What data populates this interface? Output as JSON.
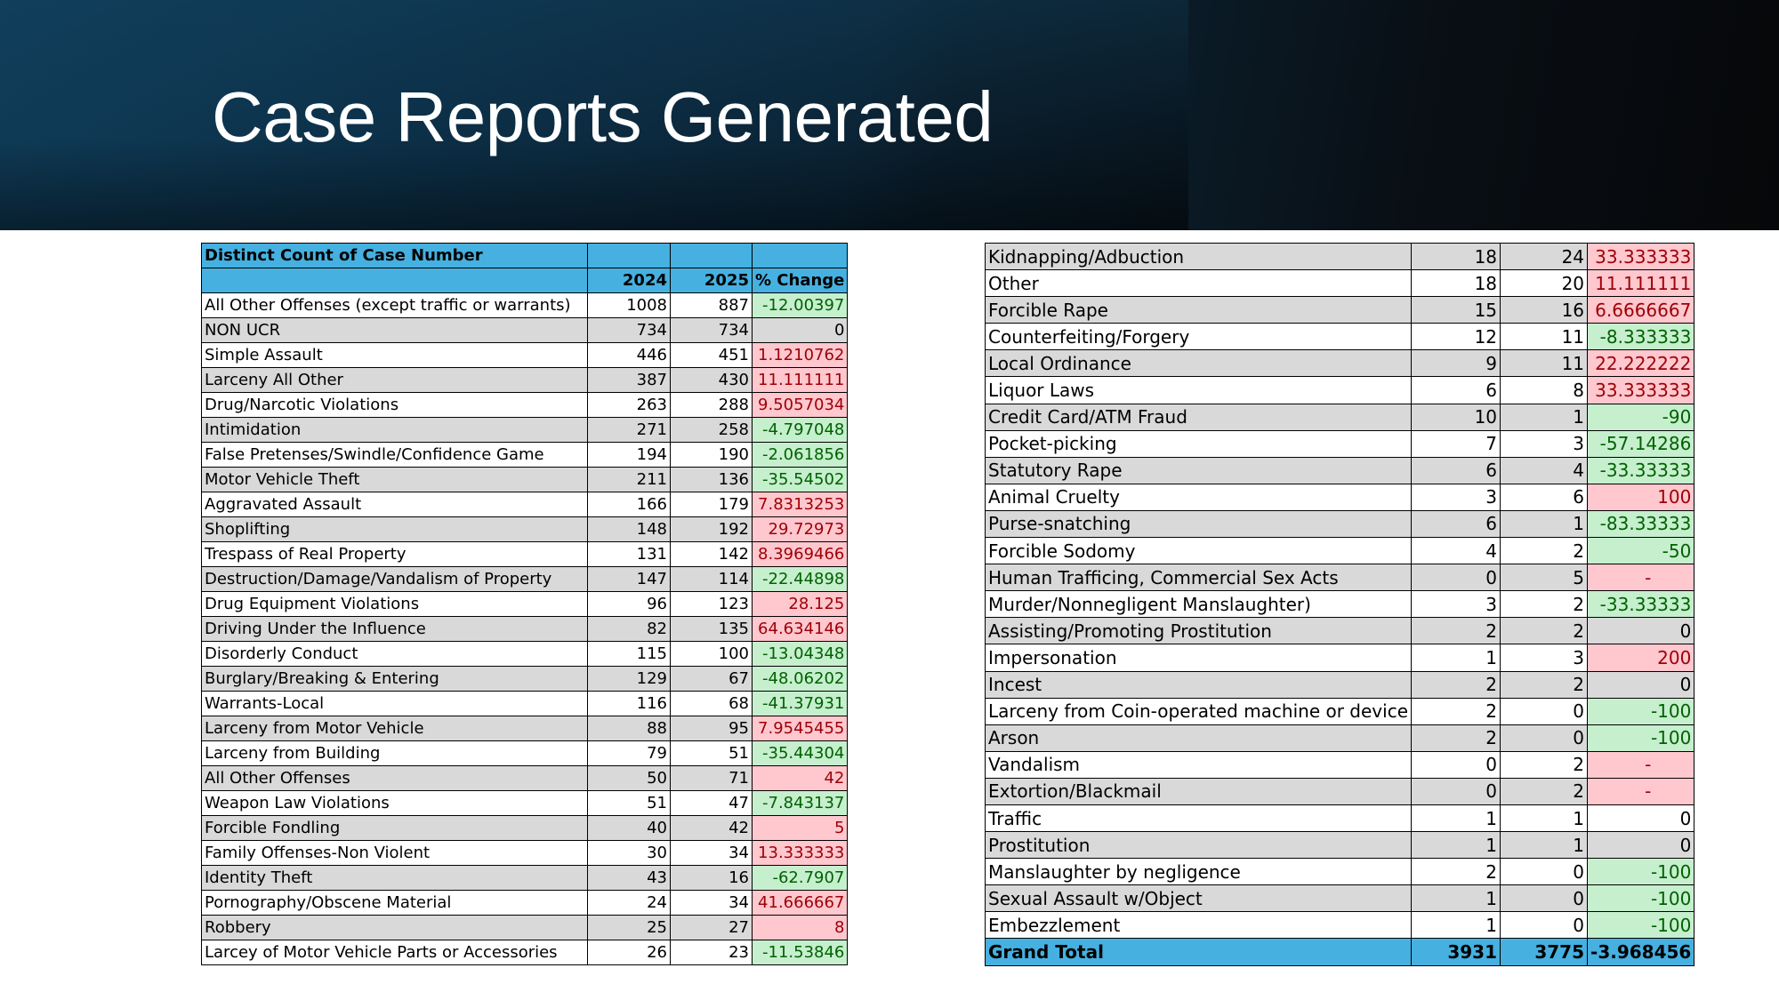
{
  "slide": {
    "title": "Case Reports Generated"
  },
  "left_table": {
    "header_title": "Distinct Count of Case Number",
    "columns": [
      "",
      "2024",
      "2025",
      "% Change"
    ],
    "rows": [
      [
        "All Other Offenses (except traffic or warrants)",
        "1008",
        "887",
        "-12.00397"
      ],
      [
        "NON UCR",
        "734",
        "734",
        "0"
      ],
      [
        "Simple Assault",
        "446",
        "451",
        "1.1210762"
      ],
      [
        "Larceny All Other",
        "387",
        "430",
        "11.111111"
      ],
      [
        "Drug/Narcotic Violations",
        "263",
        "288",
        "9.5057034"
      ],
      [
        "Intimidation",
        "271",
        "258",
        "-4.797048"
      ],
      [
        "False Pretenses/Swindle/Confidence Game",
        "194",
        "190",
        "-2.061856"
      ],
      [
        "Motor Vehicle Theft",
        "211",
        "136",
        "-35.54502"
      ],
      [
        "Aggravated Assault",
        "166",
        "179",
        "7.8313253"
      ],
      [
        "Shoplifting",
        "148",
        "192",
        "29.72973"
      ],
      [
        "Trespass of Real Property",
        "131",
        "142",
        "8.3969466"
      ],
      [
        "Destruction/Damage/Vandalism of Property",
        "147",
        "114",
        "-22.44898"
      ],
      [
        "Drug Equipment Violations",
        "96",
        "123",
        "28.125"
      ],
      [
        "Driving Under the Influence",
        "82",
        "135",
        "64.634146"
      ],
      [
        "Disorderly Conduct",
        "115",
        "100",
        "-13.04348"
      ],
      [
        "Burglary/Breaking & Entering",
        "129",
        "67",
        "-48.06202"
      ],
      [
        "Warrants-Local",
        "116",
        "68",
        "-41.37931"
      ],
      [
        "Larceny from Motor Vehicle",
        "88",
        "95",
        "7.9545455"
      ],
      [
        "Larceny from Building",
        "79",
        "51",
        "-35.44304"
      ],
      [
        "All Other Offenses",
        "50",
        "71",
        "42"
      ],
      [
        "Weapon Law Violations",
        "51",
        "47",
        "-7.843137"
      ],
      [
        "Forcible Fondling",
        "40",
        "42",
        "5"
      ],
      [
        "Family Offenses-Non Violent",
        "30",
        "34",
        "13.333333"
      ],
      [
        "Identity Theft",
        "43",
        "16",
        "-62.7907"
      ],
      [
        "Pornography/Obscene Material",
        "24",
        "34",
        "41.666667"
      ],
      [
        "Robbery",
        "25",
        "27",
        "8"
      ],
      [
        "Larcey of Motor Vehicle Parts or Accessories",
        "26",
        "23",
        "-11.53846"
      ]
    ]
  },
  "right_table": {
    "rows": [
      [
        "Kidnapping/Adbuction",
        "18",
        "24",
        "33.333333"
      ],
      [
        "Other",
        "18",
        "20",
        "11.111111"
      ],
      [
        "Forcible Rape",
        "15",
        "16",
        "6.6666667"
      ],
      [
        "Counterfeiting/Forgery",
        "12",
        "11",
        "-8.333333"
      ],
      [
        "Local Ordinance",
        "9",
        "11",
        "22.222222"
      ],
      [
        "Liquor Laws",
        "6",
        "8",
        "33.333333"
      ],
      [
        "Credit Card/ATM Fraud",
        "10",
        "1",
        "-90"
      ],
      [
        "Pocket-picking",
        "7",
        "3",
        "-57.14286"
      ],
      [
        "Statutory Rape",
        "6",
        "4",
        "-33.33333"
      ],
      [
        "Animal Cruelty",
        "3",
        "6",
        "100"
      ],
      [
        "Purse-snatching",
        "6",
        "1",
        "-83.33333"
      ],
      [
        "Forcible Sodomy",
        "4",
        "2",
        "-50"
      ],
      [
        "Human Trafficing, Commercial Sex Acts",
        "0",
        "5",
        "-"
      ],
      [
        "Murder/Nonnegligent Manslaughter)",
        "3",
        "2",
        "-33.33333"
      ],
      [
        "Assisting/Promoting Prostitution",
        "2",
        "2",
        "0"
      ],
      [
        "Impersonation",
        "1",
        "3",
        "200"
      ],
      [
        "Incest",
        "2",
        "2",
        "0"
      ],
      [
        "Larceny from Coin-operated machine or device",
        "2",
        "0",
        "-100"
      ],
      [
        "Arson",
        "2",
        "0",
        "-100"
      ],
      [
        "Vandalism",
        "0",
        "2",
        "-"
      ],
      [
        "Extortion/Blackmail",
        "0",
        "2",
        "-"
      ],
      [
        "Traffic",
        "1",
        "1",
        "0"
      ],
      [
        "Prostitution",
        "1",
        "1",
        "0"
      ],
      [
        "Manslaughter by negligence",
        "2",
        "0",
        "-100"
      ],
      [
        "Sexual Assault w/Object",
        "1",
        "0",
        "-100"
      ],
      [
        "Embezzlement",
        "1",
        "0",
        "-100"
      ]
    ],
    "grand_total": [
      "Grand Total",
      "3931",
      "3775",
      "-3.968456"
    ]
  }
}
